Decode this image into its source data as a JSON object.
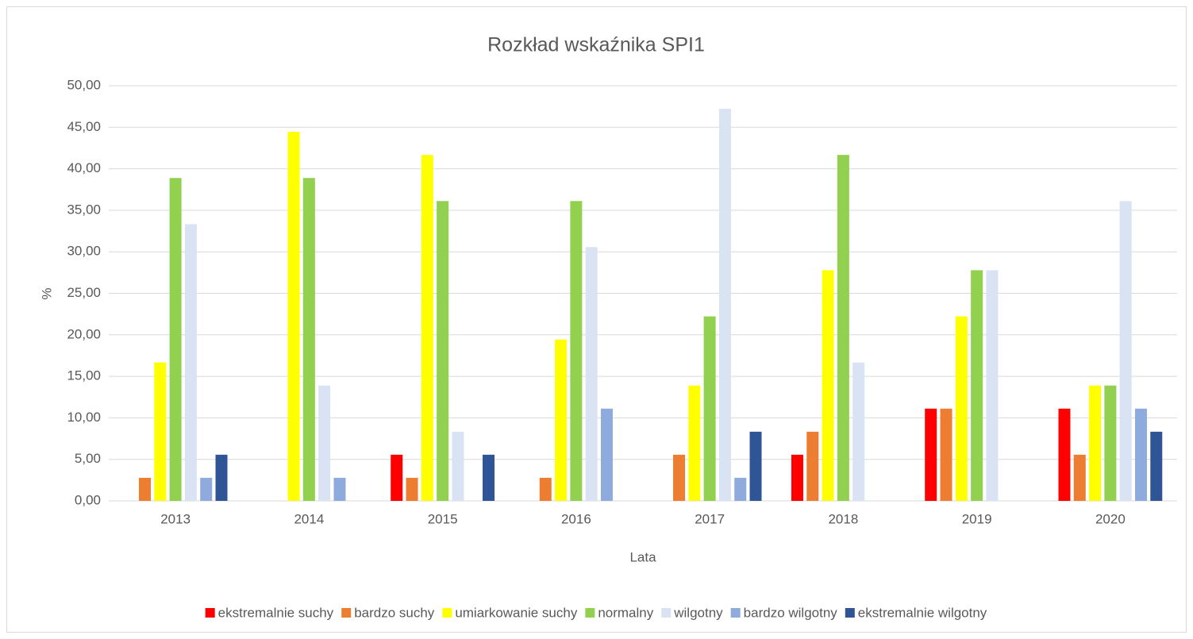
{
  "chart_data": {
    "type": "bar",
    "title": "Rozkład wskaźnika SPI1",
    "xlabel": "Lata",
    "ylabel": "%",
    "categories": [
      "2013",
      "2014",
      "2015",
      "2016",
      "2017",
      "2018",
      "2019",
      "2020"
    ],
    "series": [
      {
        "name": "ekstremalnie suchy",
        "color": "#ff0000",
        "values": [
          0,
          0,
          5.56,
          0,
          0,
          5.56,
          11.11,
          11.11
        ]
      },
      {
        "name": "bardzo suchy",
        "color": "#ed7d31",
        "values": [
          2.78,
          0,
          2.78,
          2.78,
          5.56,
          8.33,
          11.11,
          5.56
        ]
      },
      {
        "name": "umiarkowanie suchy",
        "color": "#ffff00",
        "values": [
          16.67,
          44.44,
          41.67,
          19.44,
          13.89,
          27.78,
          22.22,
          13.89
        ]
      },
      {
        "name": "normalny",
        "color": "#92d050",
        "values": [
          38.89,
          38.89,
          36.11,
          36.11,
          22.22,
          41.67,
          27.78,
          13.89
        ]
      },
      {
        "name": "wilgotny",
        "color": "#dae3f3",
        "values": [
          33.33,
          13.89,
          8.33,
          30.56,
          47.22,
          16.67,
          27.78,
          36.11
        ]
      },
      {
        "name": "bardzo wilgotny",
        "color": "#8faadc",
        "values": [
          2.78,
          2.78,
          0,
          11.11,
          2.78,
          0,
          0,
          11.11
        ]
      },
      {
        "name": "ekstremalnie wilgotny",
        "color": "#2f5597",
        "values": [
          5.56,
          0,
          5.56,
          0,
          8.33,
          0,
          0,
          8.33
        ]
      }
    ],
    "ylim": [
      0,
      50
    ],
    "yticks": [
      {
        "value": 0,
        "label": "0,00"
      },
      {
        "value": 5,
        "label": "5,00"
      },
      {
        "value": 10,
        "label": "10,00"
      },
      {
        "value": 15,
        "label": "15,00"
      },
      {
        "value": 20,
        "label": "20,00"
      },
      {
        "value": 25,
        "label": "25,00"
      },
      {
        "value": 30,
        "label": "30,00"
      },
      {
        "value": 35,
        "label": "35,00"
      },
      {
        "value": 40,
        "label": "40,00"
      },
      {
        "value": 45,
        "label": "45,00"
      },
      {
        "value": 50,
        "label": "50,00"
      }
    ],
    "grid": true,
    "legend": "bottom"
  }
}
